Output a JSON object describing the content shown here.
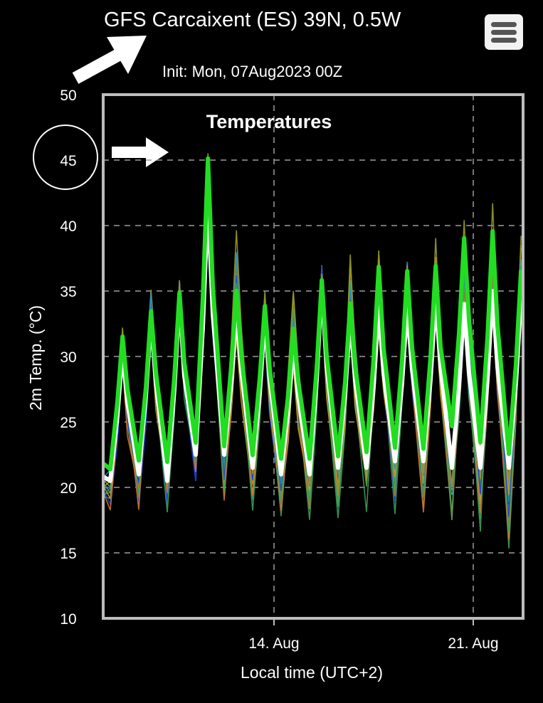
{
  "header": {
    "title": "GFS Carcaixent (ES) 39N, 0.5W",
    "subtitle": "Init: Mon, 07Aug2023 00Z"
  },
  "menu_icon": "hamburger-menu-icon",
  "annotations": {
    "title_arrow_icon": "arrow-icon",
    "temp_arrow_icon": "arrow-icon",
    "highlight_circle_label": "45"
  },
  "colors": {
    "background": "#000000",
    "plot_border": "#bdbdbd",
    "grid": "#9e9e9e",
    "mean": "#ffffff",
    "control": "#22dd22",
    "members": [
      "#2f9e8f",
      "#c6a22b",
      "#1b3fd6",
      "#d0752a",
      "#3aa05a",
      "#2a8fb8",
      "#9a9a2a"
    ]
  },
  "chart_data": {
    "type": "line",
    "title": "Temperatures",
    "xlabel": "Local time (UTC+2)",
    "ylabel": "2m Temp. (°C)",
    "ylim": [
      10,
      50
    ],
    "yticks": [
      10,
      15,
      20,
      25,
      30,
      35,
      40,
      45,
      50
    ],
    "xlim": [
      "2023-08-08",
      "2023-08-22T18:00"
    ],
    "xticks": [
      {
        "label": "14. Aug",
        "date": "2023-08-14"
      },
      {
        "label": "21. Aug",
        "date": "2023-08-21"
      }
    ],
    "grid": true,
    "daily_cycle": {
      "dates": [
        "2023-08-08",
        "2023-08-09",
        "2023-08-10",
        "2023-08-11",
        "2023-08-12",
        "2023-08-13",
        "2023-08-14",
        "2023-08-15",
        "2023-08-16",
        "2023-08-17",
        "2023-08-18",
        "2023-08-19",
        "2023-08-20",
        "2023-08-21",
        "2023-08-22"
      ],
      "mean_max": [
        30.5,
        33.0,
        34.5,
        42.0,
        33.5,
        33.0,
        31.0,
        35.5,
        33.0,
        34.0,
        34.0,
        34.5,
        34.0,
        35.0,
        34.5
      ],
      "mean_min": [
        20.5,
        21.0,
        20.5,
        22.5,
        22.5,
        21.5,
        21.0,
        21.0,
        21.5,
        21.5,
        22.0,
        22.0,
        21.5,
        21.5,
        21.5
      ],
      "control_max": [
        31.5,
        33.5,
        35.0,
        45.0,
        35.0,
        34.0,
        32.0,
        36.0,
        34.0,
        37.0,
        36.5,
        37.0,
        39.0,
        39.5,
        36.5
      ],
      "control_min": [
        21.5,
        22.0,
        22.0,
        23.5,
        23.0,
        22.5,
        22.0,
        22.0,
        22.5,
        22.5,
        23.0,
        23.0,
        24.5,
        23.5,
        22.5
      ],
      "member_max_high": [
        32.0,
        35.0,
        37.0,
        46.0,
        40.0,
        35.5,
        36.0,
        36.5,
        38.0,
        38.0,
        38.5,
        40.0,
        40.5,
        42.5,
        40.5
      ],
      "member_min_low": [
        19.0,
        19.0,
        19.0,
        21.0,
        19.0,
        19.0,
        18.5,
        18.5,
        18.5,
        19.0,
        19.0,
        18.5,
        18.0,
        17.5,
        16.0
      ]
    },
    "series": [
      {
        "role": "ensemble members"
      },
      {
        "role": "mean"
      },
      {
        "role": "control"
      }
    ]
  }
}
